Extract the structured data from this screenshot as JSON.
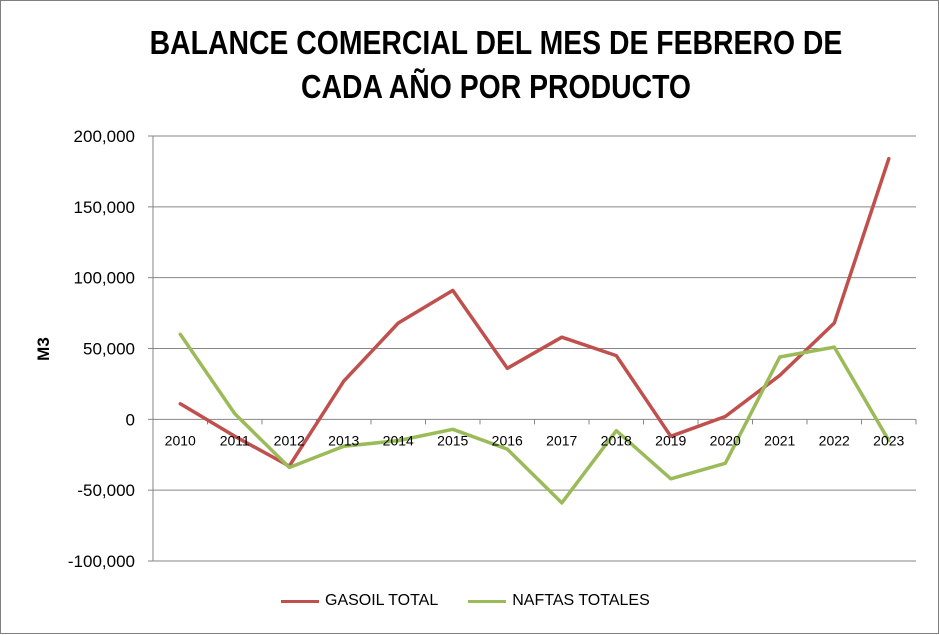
{
  "chart_data": {
    "type": "line",
    "title": "BALANCE COMERCIAL DEL MES DE FEBRERO DE CADA AÑO POR PRODUCTO",
    "xlabel": "",
    "ylabel": "M3",
    "ylim": [
      -100000,
      200000
    ],
    "yticks": [
      200000,
      150000,
      100000,
      50000,
      0,
      -50000,
      -100000
    ],
    "ytick_labels": [
      "200,000",
      "150,000",
      "100,000",
      "50,000",
      "0",
      "-50,000",
      "-100,000"
    ],
    "categories": [
      "2010",
      "2011",
      "2012",
      "2013",
      "2014",
      "2015",
      "2016",
      "2017",
      "2018",
      "2019",
      "2020",
      "2021",
      "2022",
      "2023"
    ],
    "grid": true,
    "legend_position": "bottom",
    "series": [
      {
        "name": "GASOIL TOTAL",
        "color": "#c0504d",
        "values": [
          11000,
          -12000,
          -33000,
          27000,
          68000,
          91000,
          36000,
          58000,
          45000,
          -12000,
          2000,
          31000,
          68000,
          184000
        ]
      },
      {
        "name": "NAFTAS TOTALES",
        "color": "#9bbb59",
        "values": [
          60000,
          4000,
          -34000,
          -19000,
          -15000,
          -7000,
          -21000,
          -59000,
          -8000,
          -42000,
          -31000,
          44000,
          51000,
          -15000
        ]
      }
    ]
  }
}
